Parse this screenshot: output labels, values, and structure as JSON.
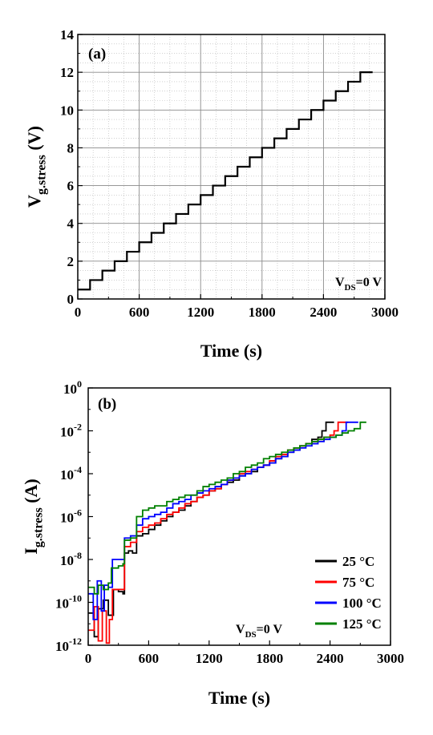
{
  "chart_data": [
    {
      "panel_label": "(a)",
      "type": "line",
      "xlabel": "Time (s)",
      "ylabel_main": "V",
      "ylabel_sub": "g.stress",
      "ylabel_unit": "(V)",
      "xlim": [
        0,
        3000
      ],
      "ylim": [
        0,
        14
      ],
      "x_ticks": [
        "0",
        "600",
        "1200",
        "1800",
        "2400",
        "3000"
      ],
      "y_ticks": [
        "0",
        "2",
        "4",
        "6",
        "8",
        "10",
        "12",
        "14"
      ],
      "grid": true,
      "annotation": {
        "main": "V",
        "sub": "DS",
        "rest": "=0 V"
      },
      "series": [
        {
          "color": "#000000",
          "step_duration_s": 120,
          "levels_V": [
            0.5,
            1.0,
            1.5,
            2.0,
            2.5,
            3.0,
            3.5,
            4.0,
            4.5,
            5.0,
            5.5,
            6.0,
            6.5,
            7.0,
            7.5,
            8.0,
            8.5,
            9.0,
            9.5,
            10.0,
            10.5,
            11.0,
            11.5,
            12.0
          ]
        }
      ]
    },
    {
      "panel_label": "(b)",
      "type": "line",
      "xlabel": "Time (s)",
      "ylabel_main": "I",
      "ylabel_sub": "g.stress",
      "ylabel_unit": "(A)",
      "xlim": [
        0,
        3000
      ],
      "ylim_log10": [
        -12,
        0
      ],
      "yscale": "log",
      "x_ticks": [
        "0",
        "600",
        "1200",
        "1800",
        "2400",
        "3000"
      ],
      "y_tick_exponents": [
        "0",
        "-2",
        "-4",
        "-6",
        "-8",
        "-10",
        "-12"
      ],
      "y_tick_base": "10",
      "grid": false,
      "legend_position": "bottom-right",
      "annotation": {
        "main": "V",
        "sub": "DS",
        "rest": "=0 V"
      },
      "series": [
        {
          "name": "25 °C",
          "color": "#000000",
          "points": [
            [
              0,
              -10.5
            ],
            [
              60,
              -11.6
            ],
            [
              100,
              -10.3
            ],
            [
              150,
              -9.9
            ],
            [
              200,
              -10.6
            ],
            [
              250,
              -9.4
            ],
            [
              300,
              -9.5
            ],
            [
              345,
              -9.6
            ],
            [
              360,
              -7.7
            ],
            [
              400,
              -7.6
            ],
            [
              440,
              -7.7
            ],
            [
              480,
              -6.9
            ],
            [
              540,
              -6.8
            ],
            [
              600,
              -6.6
            ],
            [
              660,
              -6.4
            ],
            [
              720,
              -6.2
            ],
            [
              780,
              -6.0
            ],
            [
              840,
              -5.8
            ],
            [
              900,
              -5.7
            ],
            [
              960,
              -5.5
            ],
            [
              1020,
              -5.3
            ],
            [
              1080,
              -5.1
            ],
            [
              1140,
              -5.0
            ],
            [
              1200,
              -4.8
            ],
            [
              1260,
              -4.7
            ],
            [
              1320,
              -4.5
            ],
            [
              1380,
              -4.4
            ],
            [
              1440,
              -4.3
            ],
            [
              1500,
              -4.1
            ],
            [
              1560,
              -4.0
            ],
            [
              1620,
              -3.9
            ],
            [
              1680,
              -3.7
            ],
            [
              1740,
              -3.6
            ],
            [
              1800,
              -3.5
            ],
            [
              1860,
              -3.3
            ],
            [
              1920,
              -3.2
            ],
            [
              1980,
              -3.0
            ],
            [
              2040,
              -2.9
            ],
            [
              2100,
              -2.7
            ],
            [
              2160,
              -2.6
            ],
            [
              2220,
              -2.4
            ],
            [
              2280,
              -2.3
            ],
            [
              2320,
              -2.0
            ],
            [
              2360,
              -1.6
            ],
            [
              2440,
              -1.6
            ]
          ]
        },
        {
          "name": "75 °C",
          "color": "#ff0000",
          "points": [
            [
              0,
              -11.3
            ],
            [
              60,
              -10.2
            ],
            [
              100,
              -11.8
            ],
            [
              140,
              -10.4
            ],
            [
              180,
              -11.9
            ],
            [
              210,
              -10.8
            ],
            [
              240,
              -9.4
            ],
            [
              300,
              -9.4
            ],
            [
              340,
              -9.4
            ],
            [
              360,
              -7.4
            ],
            [
              420,
              -7.2
            ],
            [
              480,
              -6.7
            ],
            [
              540,
              -6.5
            ],
            [
              600,
              -6.4
            ],
            [
              660,
              -6.3
            ],
            [
              720,
              -6.1
            ],
            [
              780,
              -5.9
            ],
            [
              840,
              -5.8
            ],
            [
              900,
              -5.6
            ],
            [
              960,
              -5.4
            ],
            [
              1020,
              -5.3
            ],
            [
              1080,
              -5.1
            ],
            [
              1140,
              -5.0
            ],
            [
              1200,
              -4.8
            ],
            [
              1260,
              -4.7
            ],
            [
              1320,
              -4.5
            ],
            [
              1380,
              -4.3
            ],
            [
              1440,
              -4.2
            ],
            [
              1500,
              -4.0
            ],
            [
              1560,
              -3.9
            ],
            [
              1620,
              -3.8
            ],
            [
              1680,
              -3.7
            ],
            [
              1740,
              -3.6
            ],
            [
              1800,
              -3.4
            ],
            [
              1860,
              -3.2
            ],
            [
              1920,
              -3.1
            ],
            [
              1980,
              -2.9
            ],
            [
              2040,
              -2.8
            ],
            [
              2100,
              -2.7
            ],
            [
              2160,
              -2.6
            ],
            [
              2220,
              -2.5
            ],
            [
              2280,
              -2.4
            ],
            [
              2340,
              -2.3
            ],
            [
              2400,
              -2.2
            ],
            [
              2440,
              -2.0
            ],
            [
              2480,
              -1.6
            ],
            [
              2580,
              -1.6
            ]
          ]
        },
        {
          "name": "100 °C",
          "color": "#0000ff",
          "points": [
            [
              0,
              -9.6
            ],
            [
              50,
              -10.8
            ],
            [
              90,
              -9.0
            ],
            [
              130,
              -10.4
            ],
            [
              160,
              -9.2
            ],
            [
              200,
              -9.3
            ],
            [
              240,
              -8.0
            ],
            [
              300,
              -8.0
            ],
            [
              340,
              -8.0
            ],
            [
              360,
              -7.0
            ],
            [
              420,
              -6.9
            ],
            [
              480,
              -6.4
            ],
            [
              540,
              -6.1
            ],
            [
              600,
              -6.0
            ],
            [
              660,
              -5.9
            ],
            [
              720,
              -5.8
            ],
            [
              780,
              -5.6
            ],
            [
              840,
              -5.4
            ],
            [
              900,
              -5.3
            ],
            [
              960,
              -5.2
            ],
            [
              1020,
              -5.0
            ],
            [
              1080,
              -4.9
            ],
            [
              1140,
              -4.8
            ],
            [
              1200,
              -4.7
            ],
            [
              1260,
              -4.6
            ],
            [
              1320,
              -4.5
            ],
            [
              1380,
              -4.3
            ],
            [
              1440,
              -4.2
            ],
            [
              1500,
              -4.1
            ],
            [
              1560,
              -4.0
            ],
            [
              1620,
              -3.8
            ],
            [
              1680,
              -3.7
            ],
            [
              1740,
              -3.6
            ],
            [
              1800,
              -3.5
            ],
            [
              1860,
              -3.3
            ],
            [
              1920,
              -3.2
            ],
            [
              1980,
              -3.0
            ],
            [
              2040,
              -2.9
            ],
            [
              2100,
              -2.8
            ],
            [
              2160,
              -2.7
            ],
            [
              2220,
              -2.6
            ],
            [
              2280,
              -2.5
            ],
            [
              2340,
              -2.4
            ],
            [
              2400,
              -2.3
            ],
            [
              2460,
              -2.2
            ],
            [
              2520,
              -2.0
            ],
            [
              2560,
              -1.6
            ],
            [
              2680,
              -1.6
            ]
          ]
        },
        {
          "name": "125 °C",
          "color": "#008000",
          "points": [
            [
              0,
              -9.3
            ],
            [
              60,
              -9.6
            ],
            [
              100,
              -9.2
            ],
            [
              150,
              -9.4
            ],
            [
              200,
              -9.1
            ],
            [
              230,
              -8.4
            ],
            [
              300,
              -8.3
            ],
            [
              345,
              -8.2
            ],
            [
              360,
              -7.1
            ],
            [
              420,
              -7.0
            ],
            [
              480,
              -6.0
            ],
            [
              540,
              -5.7
            ],
            [
              600,
              -5.6
            ],
            [
              660,
              -5.5
            ],
            [
              720,
              -5.5
            ],
            [
              780,
              -5.3
            ],
            [
              840,
              -5.2
            ],
            [
              900,
              -5.1
            ],
            [
              960,
              -5.0
            ],
            [
              1020,
              -5.0
            ],
            [
              1080,
              -4.8
            ],
            [
              1140,
              -4.6
            ],
            [
              1200,
              -4.5
            ],
            [
              1260,
              -4.4
            ],
            [
              1320,
              -4.3
            ],
            [
              1380,
              -4.2
            ],
            [
              1440,
              -4.0
            ],
            [
              1500,
              -3.9
            ],
            [
              1560,
              -3.7
            ],
            [
              1620,
              -3.6
            ],
            [
              1680,
              -3.5
            ],
            [
              1740,
              -3.3
            ],
            [
              1800,
              -3.2
            ],
            [
              1860,
              -3.1
            ],
            [
              1920,
              -3.0
            ],
            [
              1980,
              -2.9
            ],
            [
              2040,
              -2.8
            ],
            [
              2100,
              -2.7
            ],
            [
              2160,
              -2.6
            ],
            [
              2220,
              -2.5
            ],
            [
              2280,
              -2.4
            ],
            [
              2340,
              -2.3
            ],
            [
              2400,
              -2.3
            ],
            [
              2460,
              -2.2
            ],
            [
              2520,
              -2.1
            ],
            [
              2580,
              -2.0
            ],
            [
              2640,
              -1.9
            ],
            [
              2700,
              -1.6
            ],
            [
              2760,
              -1.6
            ]
          ]
        }
      ]
    }
  ]
}
